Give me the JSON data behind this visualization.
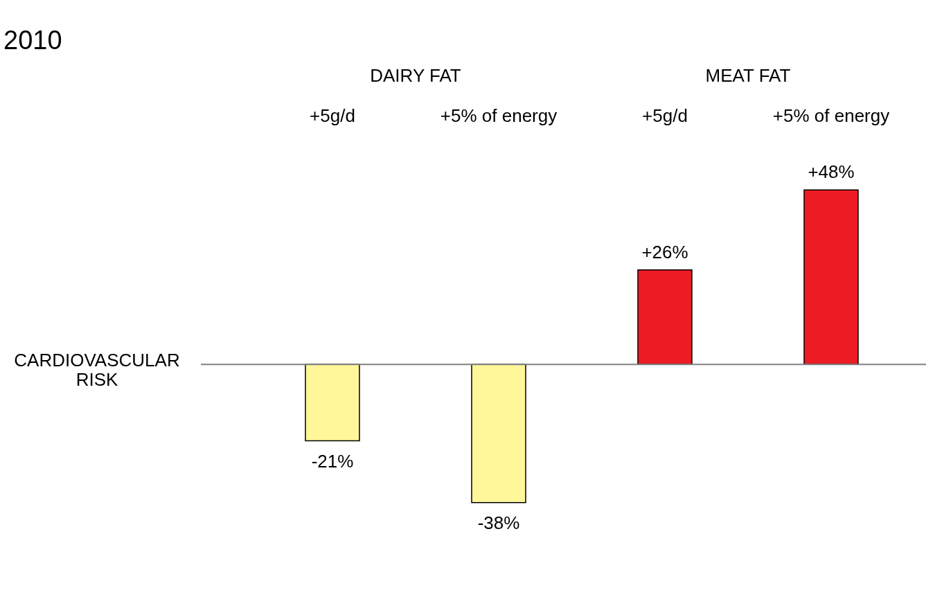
{
  "chart_data": {
    "type": "bar",
    "title": "2010",
    "ylabel": "CARDIOVASCULAR RISK",
    "categories": [
      "+5g/d",
      "+5% of energy",
      "+5g/d",
      "+5% of energy"
    ],
    "values": [
      -21,
      -38,
      26,
      48
    ],
    "colors": [
      "#fff799",
      "#fff799",
      "#ed1c24",
      "#ed1c24"
    ],
    "value_labels": [
      "-21%",
      "-38%",
      "+26%",
      "+48%"
    ],
    "annotations": [
      "DAIRY FAT",
      "MEAT FAT"
    ],
    "ref_lines": [
      {
        "axis": "y",
        "value": 0,
        "color": "#808080"
      }
    ]
  }
}
